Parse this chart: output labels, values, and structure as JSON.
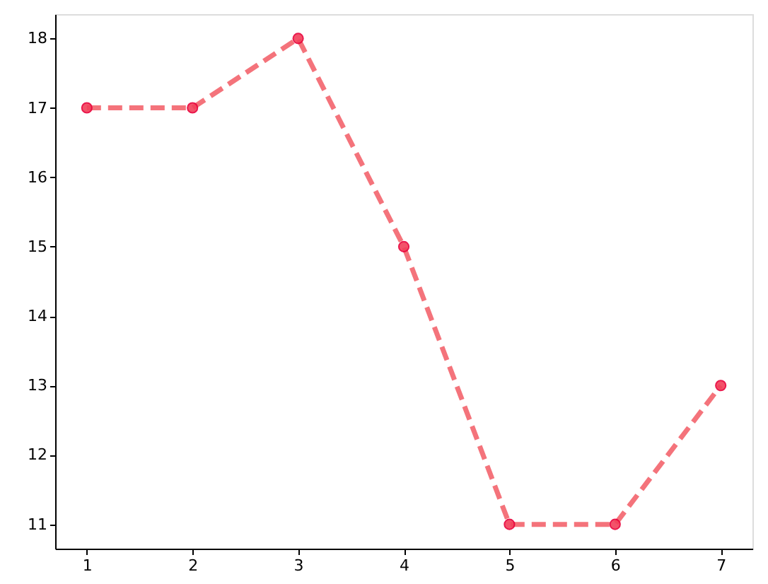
{
  "chart_data": {
    "type": "line",
    "x": [
      1,
      2,
      3,
      4,
      5,
      6,
      7
    ],
    "series": [
      {
        "color": "#f4737b",
        "values": [
          17,
          17,
          18,
          15,
          11,
          11,
          13
        ]
      }
    ],
    "xlim": [
      0.7,
      7.3
    ],
    "ylim": [
      10.65,
      18.35
    ],
    "xticks": [
      1,
      2,
      3,
      4,
      5,
      6,
      7
    ],
    "yticks": [
      11,
      12,
      13,
      14,
      15,
      16,
      17,
      18
    ],
    "grid": false,
    "marker": "circle",
    "line_style": "dashed"
  }
}
